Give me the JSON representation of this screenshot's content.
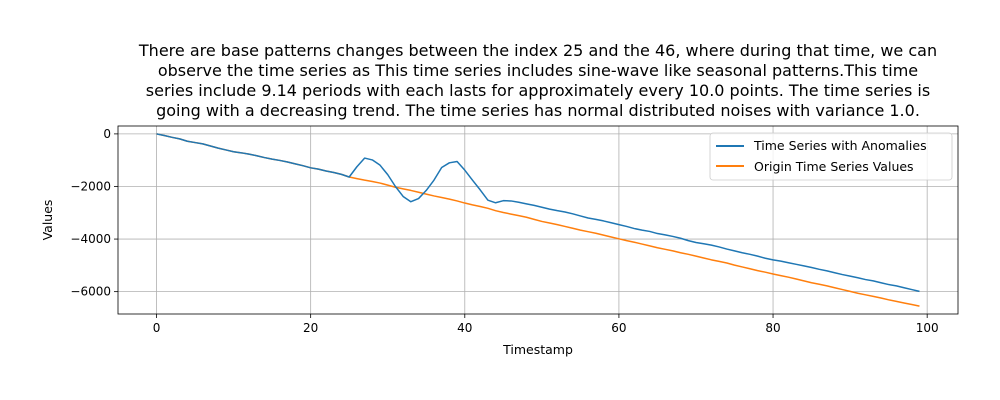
{
  "chart_data": {
    "type": "line",
    "title": [
      "There are base patterns changes between the index 25 and the 46, where during that time, we can",
      "observe the time series as This time series includes sine-wave like seasonal patterns.This time",
      "series include 9.14 periods with each lasts for approximately every 10.0 points. The time series is",
      "going with a decreasing trend. The time series has normal distributed noises with variance 1.0."
    ],
    "xlabel": "Timestamp",
    "ylabel": "Values",
    "xlim": [
      -5,
      104
    ],
    "ylim": [
      -6850,
      300
    ],
    "xticks": [
      0,
      20,
      40,
      60,
      80,
      100
    ],
    "yticks": [
      0,
      -2000,
      -4000,
      -6000
    ],
    "ytick_labels": [
      "0",
      "−2000",
      "−4000",
      "−6000"
    ],
    "grid": true,
    "legend_position": "top-right",
    "series": [
      {
        "name": "Time Series with Anomalies",
        "color": "#1f77b4",
        "x": [
          0,
          1,
          2,
          3,
          4,
          5,
          6,
          7,
          8,
          9,
          10,
          11,
          12,
          13,
          14,
          15,
          16,
          17,
          18,
          19,
          20,
          21,
          22,
          23,
          24,
          25,
          26,
          27,
          28,
          29,
          30,
          31,
          32,
          33,
          34,
          35,
          36,
          37,
          38,
          39,
          40,
          41,
          42,
          43,
          44,
          45,
          46,
          47,
          48,
          49,
          50,
          51,
          52,
          53,
          54,
          55,
          56,
          57,
          58,
          59,
          60,
          61,
          62,
          63,
          64,
          65,
          66,
          67,
          68,
          69,
          70,
          71,
          72,
          73,
          74,
          75,
          76,
          77,
          78,
          79,
          80,
          81,
          82,
          83,
          84,
          85,
          86,
          87,
          88,
          89,
          90,
          91,
          92,
          93,
          94,
          95,
          96,
          97,
          98,
          99
        ],
        "y": [
          0,
          -60,
          -130,
          -190,
          -280,
          -330,
          -380,
          -460,
          -540,
          -610,
          -680,
          -720,
          -770,
          -830,
          -900,
          -960,
          -1010,
          -1070,
          -1140,
          -1210,
          -1290,
          -1340,
          -1410,
          -1470,
          -1540,
          -1640,
          -1250,
          -920,
          -990,
          -1190,
          -1550,
          -2000,
          -2380,
          -2580,
          -2460,
          -2150,
          -1760,
          -1280,
          -1100,
          -1050,
          -1380,
          -1760,
          -2130,
          -2520,
          -2620,
          -2540,
          -2550,
          -2600,
          -2660,
          -2720,
          -2790,
          -2860,
          -2920,
          -2970,
          -3040,
          -3120,
          -3200,
          -3250,
          -3310,
          -3380,
          -3450,
          -3520,
          -3600,
          -3660,
          -3710,
          -3790,
          -3840,
          -3900,
          -3970,
          -4060,
          -4130,
          -4180,
          -4230,
          -4300,
          -4380,
          -4450,
          -4520,
          -4580,
          -4650,
          -4730,
          -4790,
          -4840,
          -4900,
          -4960,
          -5020,
          -5080,
          -5150,
          -5210,
          -5280,
          -5350,
          -5410,
          -5470,
          -5540,
          -5590,
          -5660,
          -5730,
          -5780,
          -5850,
          -5920,
          -5990
        ]
      },
      {
        "name": "Origin Time Series Values",
        "color": "#ff7f0e",
        "x": [
          0,
          1,
          2,
          3,
          4,
          5,
          6,
          7,
          8,
          9,
          10,
          11,
          12,
          13,
          14,
          15,
          16,
          17,
          18,
          19,
          20,
          21,
          22,
          23,
          24,
          25,
          26,
          27,
          28,
          29,
          30,
          31,
          32,
          33,
          34,
          35,
          36,
          37,
          38,
          39,
          40,
          41,
          42,
          43,
          44,
          45,
          46,
          47,
          48,
          49,
          50,
          51,
          52,
          53,
          54,
          55,
          56,
          57,
          58,
          59,
          60,
          61,
          62,
          63,
          64,
          65,
          66,
          67,
          68,
          69,
          70,
          71,
          72,
          73,
          74,
          75,
          76,
          77,
          78,
          79,
          80,
          81,
          82,
          83,
          84,
          85,
          86,
          87,
          88,
          89,
          90,
          91,
          92,
          93,
          94,
          95,
          96,
          97,
          98,
          99
        ],
        "y": [
          0,
          -60,
          -130,
          -190,
          -280,
          -330,
          -380,
          -460,
          -540,
          -610,
          -680,
          -720,
          -770,
          -830,
          -900,
          -960,
          -1010,
          -1070,
          -1140,
          -1210,
          -1290,
          -1340,
          -1410,
          -1470,
          -1540,
          -1640,
          -1700,
          -1760,
          -1810,
          -1870,
          -1950,
          -2030,
          -2090,
          -2150,
          -2220,
          -2290,
          -2360,
          -2420,
          -2480,
          -2550,
          -2630,
          -2700,
          -2760,
          -2830,
          -2920,
          -2990,
          -3050,
          -3110,
          -3170,
          -3250,
          -3330,
          -3390,
          -3450,
          -3520,
          -3590,
          -3660,
          -3720,
          -3780,
          -3850,
          -3920,
          -3990,
          -4060,
          -4120,
          -4190,
          -4260,
          -4330,
          -4390,
          -4450,
          -4520,
          -4580,
          -4650,
          -4720,
          -4790,
          -4850,
          -4910,
          -4990,
          -5060,
          -5130,
          -5200,
          -5260,
          -5330,
          -5390,
          -5450,
          -5520,
          -5590,
          -5660,
          -5720,
          -5780,
          -5850,
          -5920,
          -5990,
          -6060,
          -6120,
          -6180,
          -6240,
          -6310,
          -6370,
          -6430,
          -6490,
          -6550
        ]
      }
    ]
  }
}
